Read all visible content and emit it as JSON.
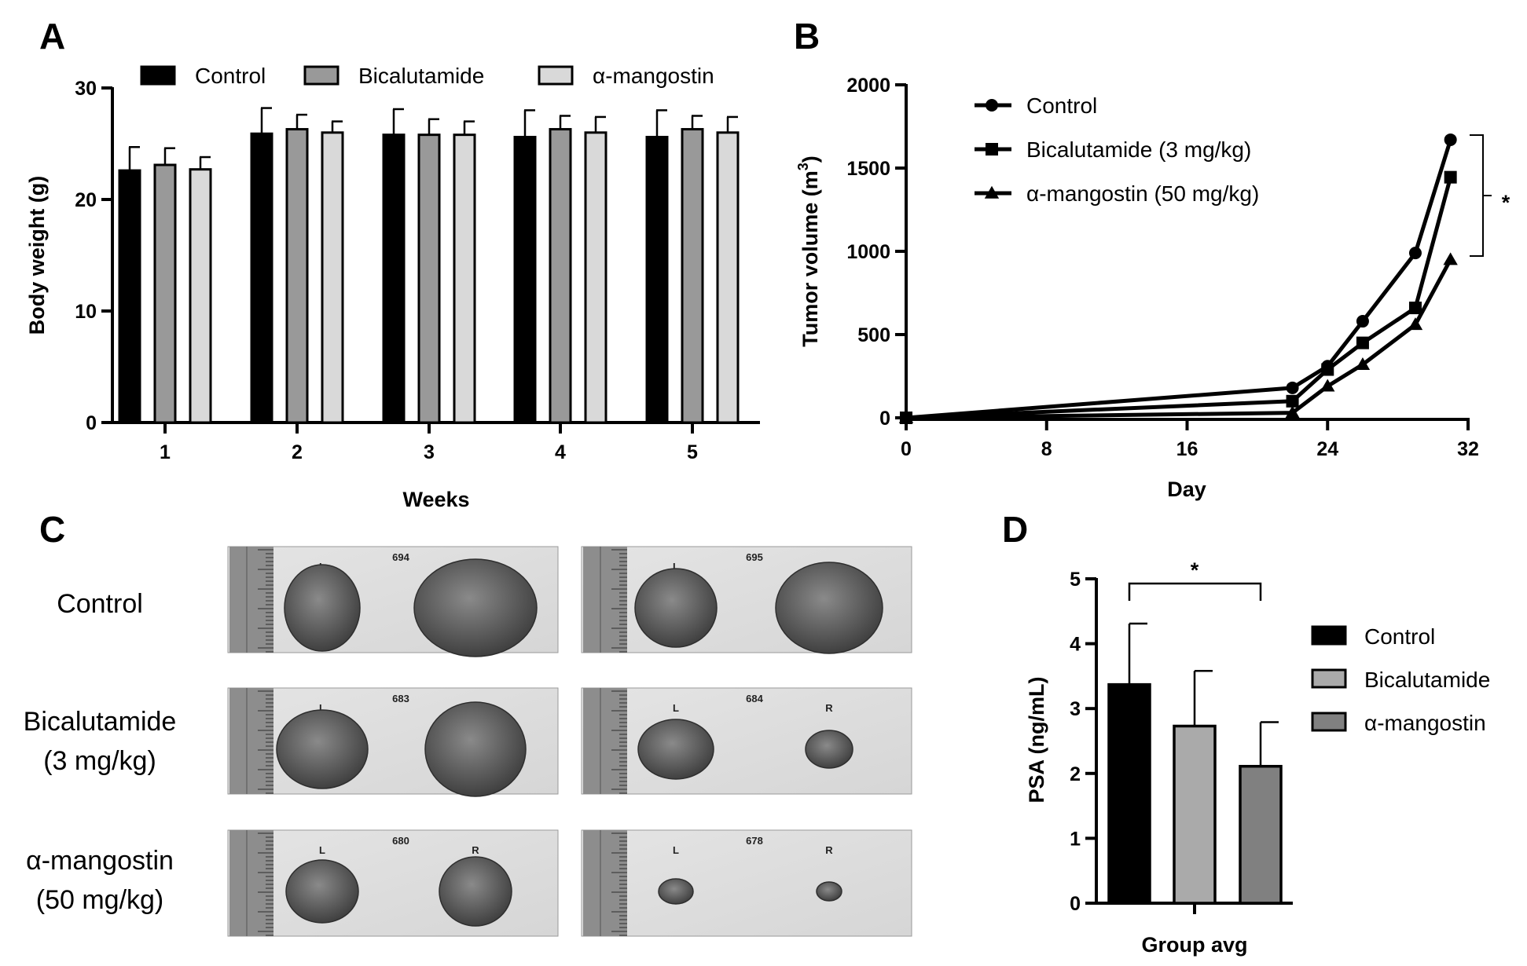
{
  "panels": {
    "a": "A",
    "b": "B",
    "c": "C",
    "d": "D"
  },
  "chart_data": [
    {
      "id": "A",
      "type": "bar",
      "title": "",
      "xlabel": "Weeks",
      "ylabel": "Body weight (g)",
      "ylim": [
        0,
        30
      ],
      "yticks": [
        "0",
        "10",
        "20",
        "30"
      ],
      "categories": [
        "1",
        "2",
        "3",
        "4",
        "5"
      ],
      "legend_position": "top",
      "series": [
        {
          "name": "Control",
          "color": "#000000",
          "values": [
            22.6,
            25.9,
            25.8,
            25.6,
            25.6
          ],
          "errors": [
            2.1,
            2.3,
            2.3,
            2.4,
            2.4
          ]
        },
        {
          "name": "Bicalutamide",
          "color": "#999999",
          "values": [
            23.1,
            26.3,
            25.8,
            26.3,
            26.3
          ],
          "errors": [
            1.5,
            1.3,
            1.4,
            1.2,
            1.2
          ]
        },
        {
          "name": "α-mangostin",
          "color": "#d9d9d9",
          "values": [
            22.7,
            26.0,
            25.8,
            26.0,
            26.0
          ],
          "errors": [
            1.1,
            1.0,
            1.2,
            1.4,
            1.4
          ]
        }
      ]
    },
    {
      "id": "B",
      "type": "line",
      "title": "",
      "xlabel": "Day",
      "ylabel_main": "Tumor volume (m",
      "ylabel_sup": "3",
      "ylabel_end": ")",
      "xlim": [
        0,
        32
      ],
      "ylim": [
        0,
        2000
      ],
      "xticks": [
        "0",
        "8",
        "16",
        "24",
        "32"
      ],
      "yticks": [
        "0",
        "500",
        "1000",
        "1500",
        "2000"
      ],
      "legend_position": "top-left",
      "significance": "*",
      "series": [
        {
          "name": "Control",
          "marker": "circle",
          "x": [
            0,
            22,
            24,
            26,
            29,
            31
          ],
          "y": [
            0,
            180,
            310,
            580,
            990,
            1670
          ]
        },
        {
          "name": "Bicalutamide (3 mg/kg)",
          "marker": "square",
          "x": [
            0,
            22,
            24,
            26,
            29,
            31
          ],
          "y": [
            0,
            100,
            290,
            450,
            660,
            1445
          ]
        },
        {
          "name": "α-mangostin (50 mg/kg)",
          "marker": "triangle",
          "x": [
            0,
            22,
            24,
            26,
            29,
            31
          ],
          "y": [
            0,
            30,
            190,
            320,
            560,
            950
          ]
        }
      ]
    },
    {
      "id": "D",
      "type": "bar",
      "title": "",
      "xlabel": "Group avg",
      "ylabel": "PSA (ng/mL)",
      "ylim": [
        0,
        5
      ],
      "yticks": [
        "0",
        "1",
        "2",
        "3",
        "4",
        "5"
      ],
      "legend_position": "right",
      "significance": "*",
      "categories": [
        "Control",
        "Bicalutamide",
        "α-mangostin"
      ],
      "values": [
        3.37,
        2.73,
        2.11
      ],
      "errors": [
        0.94,
        0.85,
        0.68
      ],
      "colors": [
        "#000000",
        "#aaaaaa",
        "#808080"
      ]
    }
  ],
  "photos": {
    "rows": [
      "Control",
      "Bicalutamide\n(3 mg/kg)",
      "α-mangostin\n(50 mg/kg)"
    ],
    "row_label_lines": [
      [
        "Control"
      ],
      [
        "Bicalutamide",
        "(3 mg/kg)"
      ],
      [
        "α-mangostin",
        "(50 mg/kg)"
      ]
    ],
    "specimens": [
      [
        "694",
        "695"
      ],
      [
        "683",
        "684"
      ],
      [
        "680",
        "678"
      ]
    ],
    "left_mark": "L",
    "right_mark": "R"
  }
}
